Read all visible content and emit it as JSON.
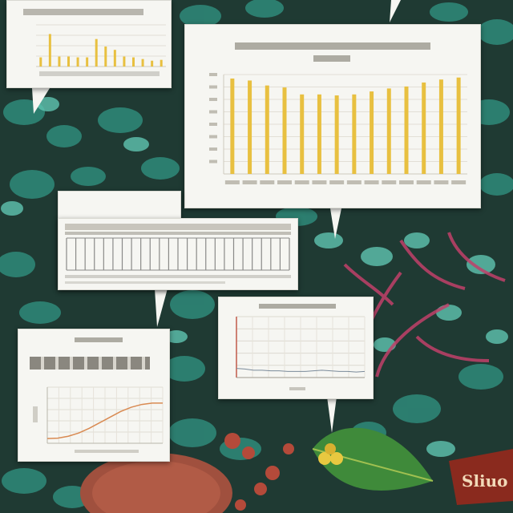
{
  "scene": {
    "colors": {
      "foliage_dark": "#1f3a33",
      "foliage_teal": "#2f8a7a",
      "foliage_light": "#5fc4b0",
      "coral_pink": "#c0406a",
      "berry_red": "#b44a3a",
      "leaf_green": "#3f8a3a",
      "card_bg": "#f6f6f2",
      "bar_gold": "#e8c040",
      "line_orange": "#d98a52",
      "sign_red": "#8a2a1e"
    },
    "sign_text": "Sliuo"
  },
  "charts": {
    "large_bar": {
      "title": "",
      "values": [
        96,
        94,
        89,
        87,
        80,
        80,
        79,
        80,
        83,
        86,
        88,
        92,
        95,
        97
      ],
      "ylim": [
        0,
        100
      ],
      "grid": true
    },
    "small_bar": {
      "values": [
        22,
        78,
        24,
        24,
        22,
        22,
        66,
        48,
        40,
        24,
        22,
        18,
        14,
        16
      ],
      "ylim": [
        0,
        100
      ]
    },
    "table_card": {
      "columns": 24
    },
    "spike_line": {
      "values": [
        15,
        14,
        12,
        12,
        11,
        11,
        10,
        10,
        10,
        11,
        12,
        11,
        10,
        10,
        9,
        10
      ],
      "ylim": [
        0,
        100
      ]
    },
    "s_curve": {
      "values": [
        10,
        11,
        15,
        22,
        32,
        44,
        56,
        68,
        77,
        83,
        86,
        86
      ],
      "ylim": [
        0,
        120
      ]
    }
  }
}
